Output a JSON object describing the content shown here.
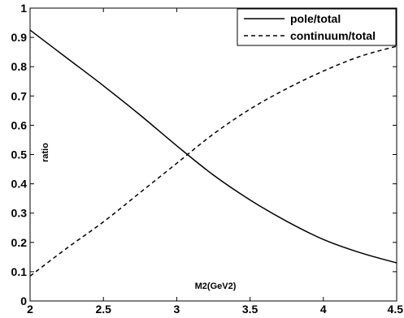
{
  "chart_data": {
    "type": "line",
    "xlabel": "M2(GeV2)",
    "ylabel": "ratio",
    "xlim": [
      2,
      4.5
    ],
    "ylim": [
      0,
      1
    ],
    "xticks": [
      "2",
      "2.5",
      "3",
      "3.5",
      "4",
      "4.5"
    ],
    "yticks": [
      "0",
      "0.1",
      "0.2",
      "0.3",
      "0.4",
      "0.5",
      "0.6",
      "0.7",
      "0.8",
      "0.9",
      "1"
    ],
    "grid": false,
    "legend_position": "top-right",
    "series": [
      {
        "name": "pole/total",
        "line_style": "solid",
        "x": [
          2.0,
          2.25,
          2.5,
          2.75,
          3.0,
          3.25,
          3.5,
          3.75,
          4.0,
          4.25,
          4.5
        ],
        "y": [
          0.925,
          0.83,
          0.735,
          0.635,
          0.53,
          0.43,
          0.345,
          0.272,
          0.21,
          0.165,
          0.13
        ]
      },
      {
        "name": "continuum/total",
        "line_style": "dashed",
        "x": [
          2.0,
          2.25,
          2.5,
          2.75,
          3.0,
          3.25,
          3.5,
          3.75,
          4.0,
          4.25,
          4.5
        ],
        "y": [
          0.085,
          0.18,
          0.27,
          0.37,
          0.47,
          0.57,
          0.655,
          0.725,
          0.785,
          0.835,
          0.87
        ]
      }
    ]
  }
}
